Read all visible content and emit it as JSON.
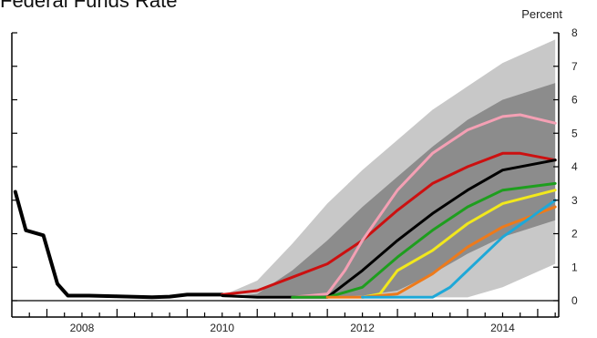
{
  "chart_data": {
    "type": "line",
    "title": "Federal Funds Rate",
    "ylabel": "Percent",
    "xlabel": "",
    "xlim": [
      2007.5,
      2015.3
    ],
    "ylim": [
      0,
      8
    ],
    "x_ticks": [
      {
        "value": 2008,
        "label": "2008"
      },
      {
        "value": 2010,
        "label": "2010"
      },
      {
        "value": 2012,
        "label": "2012"
      },
      {
        "value": 2014,
        "label": "2014"
      }
    ],
    "y_ticks": [
      {
        "value": 0,
        "label": "0"
      },
      {
        "value": 1,
        "label": "1"
      },
      {
        "value": 2,
        "label": "2"
      },
      {
        "value": 3,
        "label": "3"
      },
      {
        "value": 4,
        "label": "4"
      },
      {
        "value": 5,
        "label": "5"
      },
      {
        "value": 6,
        "label": "6"
      },
      {
        "value": 7,
        "label": "7"
      },
      {
        "value": 8,
        "label": "8"
      }
    ],
    "bands": [
      {
        "color": "#c8c8c8",
        "x": [
          2010.5,
          2011.0,
          2011.5,
          2012.0,
          2012.5,
          2013.0,
          2013.5,
          2014.0,
          2014.5,
          2015.25
        ],
        "upper": [
          0.15,
          0.6,
          1.7,
          2.9,
          3.9,
          4.8,
          5.7,
          6.4,
          7.1,
          7.8
        ],
        "lower": [
          0.1,
          0.1,
          0.1,
          0.1,
          0.1,
          0.1,
          0.1,
          0.1,
          0.4,
          1.1
        ]
      },
      {
        "color": "#8c8c8c",
        "x": [
          2010.5,
          2011.0,
          2011.5,
          2012.0,
          2012.5,
          2013.0,
          2013.5,
          2014.0,
          2014.5,
          2015.25
        ],
        "upper": [
          0.1,
          0.2,
          0.9,
          1.8,
          2.8,
          3.7,
          4.6,
          5.4,
          6.0,
          6.5
        ],
        "lower": [
          0.1,
          0.1,
          0.1,
          0.1,
          0.15,
          0.3,
          0.8,
          1.4,
          1.9,
          2.4
        ]
      }
    ],
    "series": [
      {
        "name": "",
        "color": "#000000",
        "width": 4,
        "x": [
          2007.55,
          2007.7,
          2007.95,
          2008.15,
          2008.3,
          2008.6,
          2009.0,
          2009.5,
          2009.75,
          2010.0,
          2010.5
        ],
        "y": [
          3.25,
          2.1,
          1.95,
          0.5,
          0.15,
          0.15,
          0.13,
          0.1,
          0.12,
          0.18,
          0.18
        ]
      },
      {
        "name": "",
        "color": "#cc1010",
        "width": 3,
        "x": [
          2010.5,
          2011.0,
          2011.5,
          2012.0,
          2012.5,
          2013.0,
          2013.5,
          2014.0,
          2014.5,
          2014.75,
          2015.25
        ],
        "y": [
          0.18,
          0.3,
          0.7,
          1.1,
          1.8,
          2.7,
          3.5,
          4.0,
          4.4,
          4.4,
          4.2
        ]
      },
      {
        "name": "",
        "color": "#f4a0b4",
        "width": 3,
        "x": [
          2011.5,
          2012.0,
          2012.25,
          2012.5,
          2013.0,
          2013.5,
          2014.0,
          2014.5,
          2014.75,
          2015.25
        ],
        "y": [
          0.1,
          0.2,
          0.9,
          1.8,
          3.3,
          4.4,
          5.1,
          5.5,
          5.55,
          5.3
        ]
      },
      {
        "name": "",
        "color": "#000000",
        "width": 3,
        "x": [
          2010.5,
          2011.0,
          2011.5,
          2012.0,
          2012.5,
          2013.0,
          2013.5,
          2014.0,
          2014.5,
          2015.25
        ],
        "y": [
          0.15,
          0.1,
          0.1,
          0.1,
          0.9,
          1.8,
          2.6,
          3.3,
          3.9,
          4.2
        ]
      },
      {
        "name": "",
        "color": "#1e9e1e",
        "width": 3,
        "x": [
          2011.5,
          2012.0,
          2012.5,
          2013.0,
          2013.5,
          2014.0,
          2014.5,
          2015.25
        ],
        "y": [
          0.1,
          0.1,
          0.4,
          1.3,
          2.1,
          2.8,
          3.3,
          3.5
        ]
      },
      {
        "name": "",
        "color": "#f2e81c",
        "width": 3,
        "x": [
          2012.5,
          2012.75,
          2013.0,
          2013.5,
          2014.0,
          2014.5,
          2015.25
        ],
        "y": [
          0.1,
          0.2,
          0.9,
          1.5,
          2.3,
          2.9,
          3.3
        ]
      },
      {
        "name": "",
        "color": "#ee7a1a",
        "width": 3,
        "x": [
          2012.0,
          2012.5,
          2013.0,
          2013.5,
          2014.0,
          2014.5,
          2015.25
        ],
        "y": [
          0.1,
          0.1,
          0.2,
          0.8,
          1.6,
          2.2,
          2.8
        ]
      },
      {
        "name": "",
        "color": "#1ea8d8",
        "width": 3,
        "x": [
          2012.5,
          2013.0,
          2013.5,
          2013.75,
          2014.0,
          2014.5,
          2015.25
        ],
        "y": [
          0.1,
          0.1,
          0.1,
          0.4,
          0.9,
          1.9,
          3.0
        ]
      }
    ],
    "grid": false,
    "legend": "none"
  }
}
